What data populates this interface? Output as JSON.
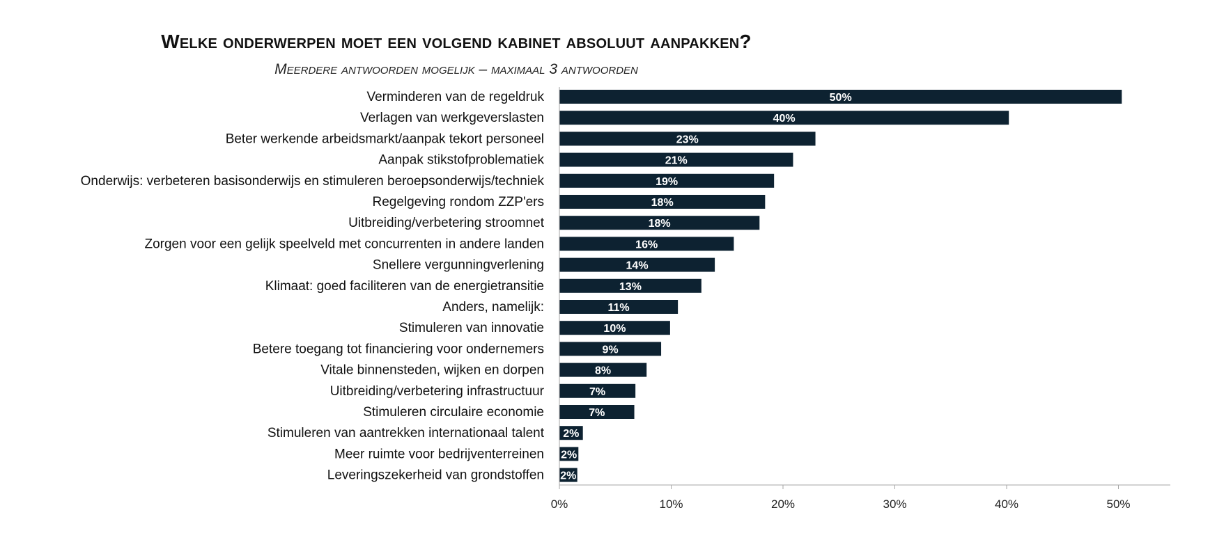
{
  "chart_data": {
    "type": "bar",
    "orientation": "horizontal",
    "title": "Welke onderwerpen moet een volgend kabinet absoluut aanpakken?",
    "subtitle": "Meerdere antwoorden mogelijk – maximaal 3 antwoorden",
    "categories": [
      "Verminderen van de regeldruk",
      "Verlagen van werkgeverslasten",
      "Beter werkende arbeidsmarkt/aanpak tekort personeel",
      "Aanpak stikstofproblematiek",
      "Onderwijs: verbeteren basisonderwijs en stimuleren beroepsonderwijs/techniek",
      "Regelgeving rondom ZZP'ers",
      "Uitbreiding/verbetering stroomnet",
      "Zorgen voor een gelijk speelveld met concurrenten in andere landen",
      "Snellere vergunningverlening",
      "Klimaat: goed faciliteren van de energietransitie",
      "Anders, namelijk:",
      "Stimuleren van innovatie",
      "Betere toegang tot financiering voor ondernemers",
      "Vitale binnensteden, wijken en dorpen",
      "Uitbreiding/verbetering infrastructuur",
      "Stimuleren circulaire economie",
      "Stimuleren van aantrekken internationaal talent",
      "Meer ruimte voor bedrijventerreinen",
      "Leveringszekerheid van grondstoffen"
    ],
    "values": [
      50.3,
      40.2,
      22.9,
      20.9,
      19.2,
      18.4,
      17.9,
      15.6,
      13.9,
      12.7,
      10.6,
      9.9,
      9.1,
      7.8,
      6.8,
      6.7,
      2.1,
      1.7,
      1.6
    ],
    "data_labels": [
      "50%",
      "40%",
      "23%",
      "21%",
      "19%",
      "18%",
      "18%",
      "16%",
      "14%",
      "13%",
      "11%",
      "10%",
      "9%",
      "8%",
      "7%",
      "7%",
      "2%",
      "2%",
      "2%"
    ],
    "xlim": [
      0,
      55
    ],
    "xticks": [
      0,
      10,
      20,
      30,
      40,
      50
    ],
    "xtick_labels": [
      "0%",
      "10%",
      "20%",
      "30%",
      "40%",
      "50%"
    ],
    "xlabel": "",
    "ylabel": "",
    "grid": false,
    "legend": "none",
    "bar_color": "#0d2231",
    "axis_color": "#a6a6a6"
  }
}
